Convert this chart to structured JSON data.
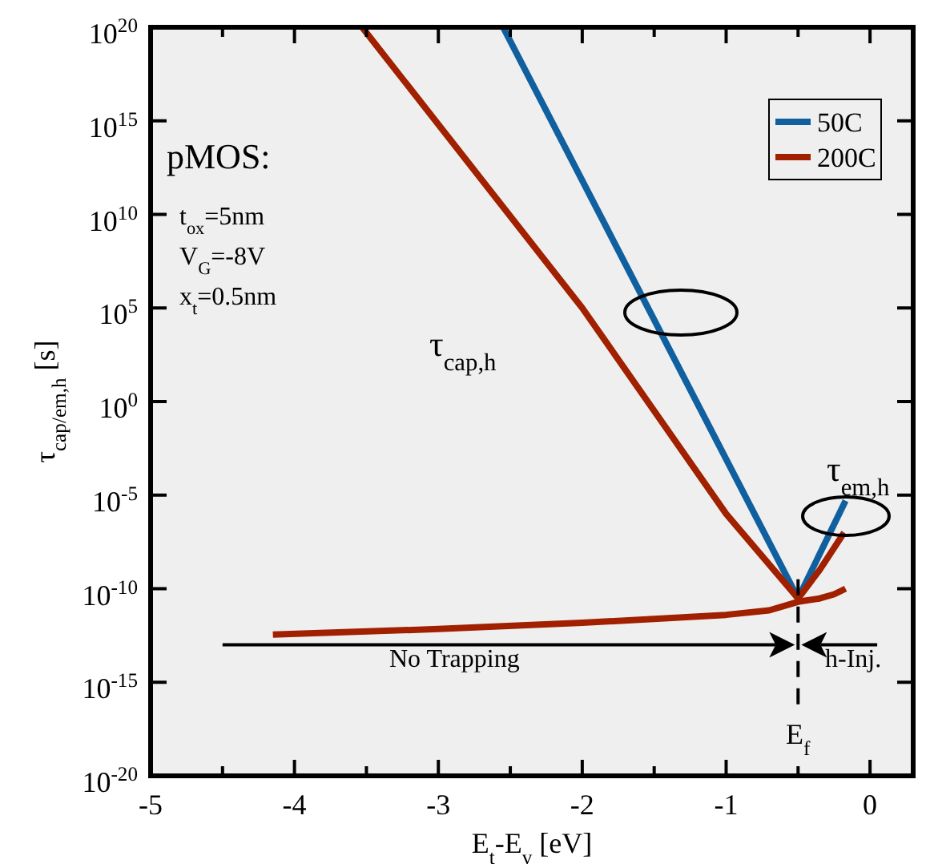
{
  "chart_data": {
    "type": "line",
    "xlabel": "E$_{t}$-E$_{v}$ [eV]",
    "ylabel": "τ$_{cap/em,h}$ [s]",
    "log": "y",
    "xlim": [
      -5,
      0.3
    ],
    "xticks": [
      -5,
      {
        "value": -4.5,
        "label": null
      },
      -4,
      {
        "value": -3.5,
        "label": null
      },
      -3,
      {
        "value": -2.5,
        "label": null
      },
      -2,
      {
        "value": -1.5,
        "label": null
      },
      -1,
      {
        "value": -0.5,
        "label": null
      },
      0
    ],
    "ylim": [
      1e-20,
      1e+20
    ],
    "yticks": [
      {
        "value": 1e-20,
        "label": "10$^{-20}$"
      },
      {
        "value": 1e-15,
        "label": "10$^{-15}$"
      },
      {
        "value": 1e-10,
        "label": "10$^{-10}$"
      },
      {
        "value": 1e-05,
        "label": "10$^{-5}$"
      },
      {
        "value": 1,
        "label": "10$^{0}$"
      },
      {
        "value": 100000.0,
        "label": "10$^{5}$"
      },
      {
        "value": 10000000000.0,
        "label": "10$^{10}$"
      },
      {
        "value": 1000000000000000.0,
        "label": "10$^{15}$"
      },
      {
        "value": 1e+20,
        "label": "10$^{20}$"
      }
    ],
    "series": [
      {
        "name": "50C",
        "color": "#1060a0",
        "x": [
          -2.55,
          -0.5,
          -0.17
        ],
        "values": [
          1e+20,
          3e-11,
          5e-06
        ]
      },
      {
        "name": "200C",
        "color": "#a02000",
        "x": [
          -3.53,
          -2,
          -1,
          -0.5,
          -0.35,
          -0.18
        ],
        "values": [
          1e+20,
          100000.0,
          1e-06,
          3e-11,
          1e-09,
          1e-07
        ]
      },
      {
        "color": "#a02000",
        "x": [
          -4.15,
          -3,
          -2,
          -1,
          -0.7,
          -0.5,
          -0.35,
          -0.25,
          -0.17
        ],
        "values": [
          3.5e-13,
          7e-13,
          1.5e-12,
          4e-12,
          7e-12,
          2e-11,
          3e-11,
          5e-11,
          1e-10
        ]
      }
    ],
    "ref_lines": [
      {
        "axis": "x",
        "value": -0.5,
        "label": "E$_{f}$",
        "line_style": "dashed"
      }
    ],
    "annotations": [
      "pMOS:",
      "t$_{ox}$=5nm",
      "V$_{G}$=-8V",
      "x$_{t}$=0.5nm",
      "τ$_{cap,h}$",
      "τ$_{em,h}$",
      "No Trapping",
      "h-Inj."
    ],
    "legend": "top right",
    "line_style": "solid"
  }
}
